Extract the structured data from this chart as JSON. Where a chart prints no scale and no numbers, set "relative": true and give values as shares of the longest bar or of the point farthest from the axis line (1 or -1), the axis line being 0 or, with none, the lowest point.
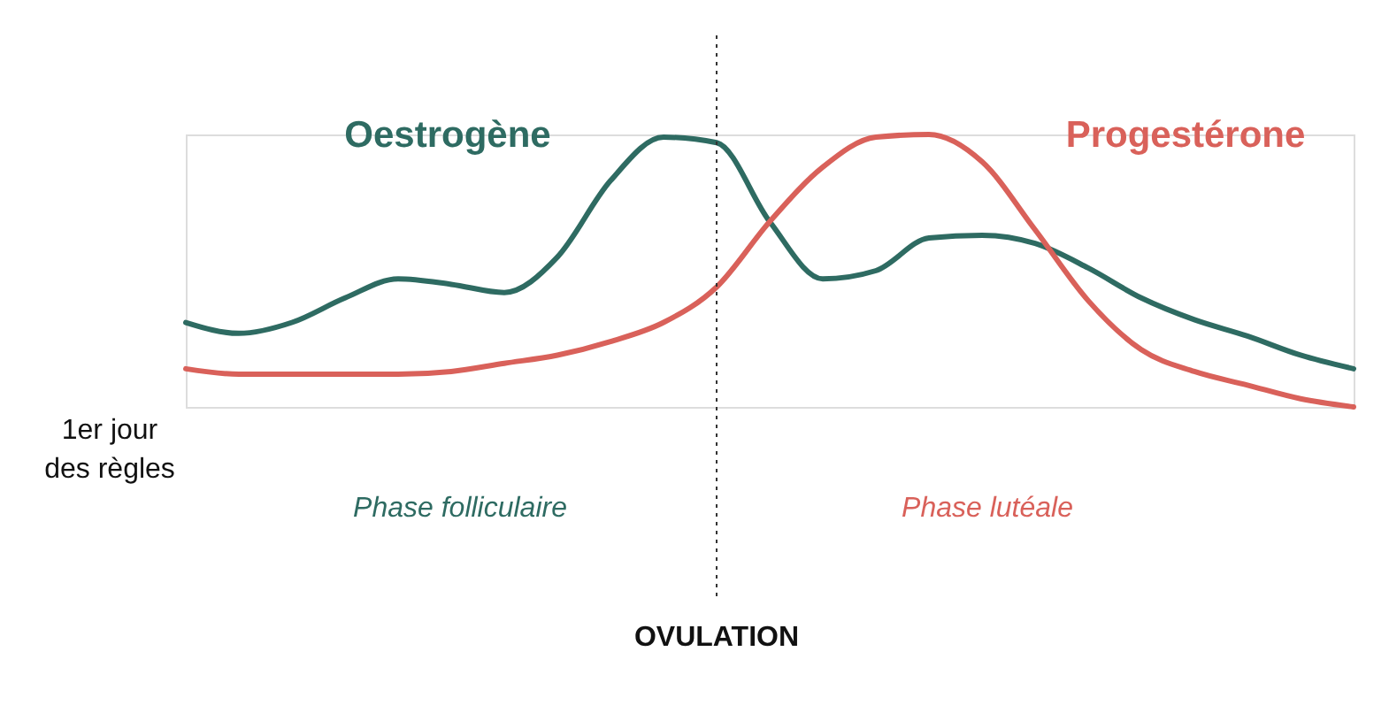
{
  "chart_data": {
    "type": "line",
    "relative": true,
    "categories": [
      null,
      null,
      null,
      null,
      null,
      null,
      null,
      null,
      null,
      null,
      null,
      null,
      null,
      null,
      null,
      null,
      null,
      null,
      null,
      null,
      null,
      null,
      null
    ],
    "series": [
      {
        "name": "Oestrogène",
        "color": "#2e6b62",
        "values": [
          0.31,
          0.27,
          0.31,
          0.4,
          0.47,
          0.45,
          0.42,
          0.55,
          0.83,
          0.99,
          0.97,
          0.68,
          0.47,
          0.5,
          0.62,
          0.63,
          0.6,
          0.51,
          0.4,
          0.32,
          0.26,
          0.19,
          0.14
        ]
      },
      {
        "name": "Progestérone",
        "color": "#d9615a",
        "values": [
          0.14,
          0.12,
          0.12,
          0.12,
          0.12,
          0.13,
          0.16,
          0.19,
          0.24,
          0.31,
          0.44,
          0.68,
          0.88,
          0.99,
          1,
          0.9,
          0.65,
          0.39,
          0.21,
          0.13,
          0.08,
          0.03,
          0
        ]
      }
    ],
    "annotations": [
      "1er jour\ndes règles",
      "Phase folliculaire",
      "Phase lutéale",
      "OVULATION"
    ],
    "legend": false,
    "marker": "none",
    "line_style": "solid"
  }
}
